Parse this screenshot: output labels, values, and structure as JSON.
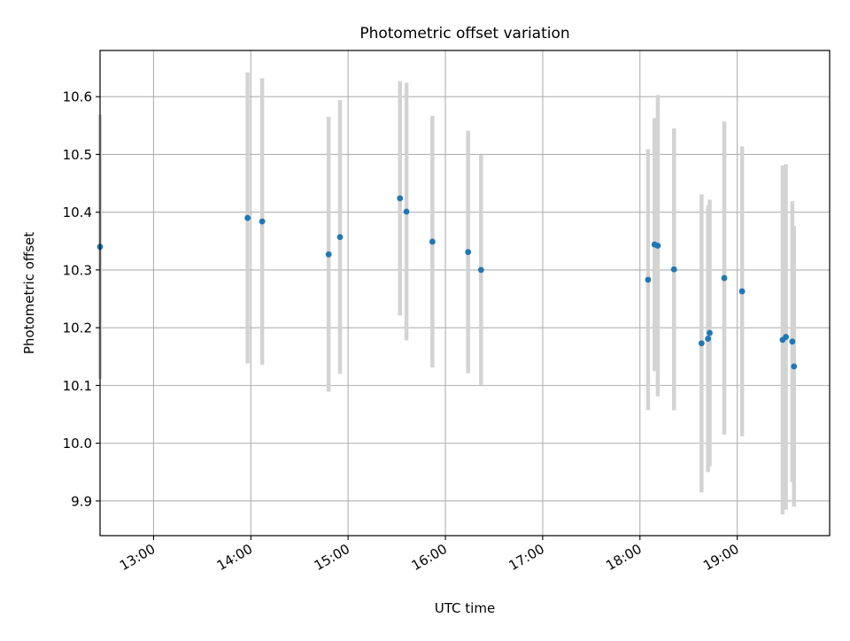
{
  "chart_data": {
    "type": "scatter",
    "title": "Photometric offset variation",
    "xlabel": "UTC time",
    "ylabel": "Photometric offset",
    "x_tick_labels": [
      "13:00",
      "14:00",
      "15:00",
      "16:00",
      "17:00",
      "18:00",
      "19:00"
    ],
    "x_ticks": [
      "13:00",
      "14:00",
      "15:00",
      "16:00",
      "17:00",
      "18:00",
      "19:00"
    ],
    "y_ticks": [
      9.9,
      10.0,
      10.1,
      10.2,
      10.3,
      10.4,
      10.5,
      10.6
    ],
    "y_tick_labels": [
      "9.9",
      "10.0",
      "10.1",
      "10.2",
      "10.3",
      "10.4",
      "10.5",
      "10.6"
    ],
    "xlim": [
      "12:27",
      "19:57"
    ],
    "ylim": [
      9.84,
      10.68
    ],
    "grid": true,
    "legend": "none",
    "colors": {
      "points": "#1f77b4",
      "errorbars": "#d3d3d3",
      "grid": "#b0b0b0"
    },
    "points": [
      {
        "time": "12:27",
        "y": 10.34,
        "err": 0.229
      },
      {
        "time": "13:58",
        "y": 10.39,
        "err": 0.252
      },
      {
        "time": "14:07",
        "y": 10.384,
        "err": 0.248
      },
      {
        "time": "14:48",
        "y": 10.327,
        "err": 0.238
      },
      {
        "time": "14:55",
        "y": 10.357,
        "err": 0.237
      },
      {
        "time": "15:32",
        "y": 10.424,
        "err": 0.203
      },
      {
        "time": "15:36",
        "y": 10.401,
        "err": 0.223
      },
      {
        "time": "15:52",
        "y": 10.349,
        "err": 0.218
      },
      {
        "time": "16:14",
        "y": 10.331,
        "err": 0.21
      },
      {
        "time": "16:22",
        "y": 10.3,
        "err": 0.199
      },
      {
        "time": "18:05",
        "y": 10.283,
        "err": 0.226
      },
      {
        "time": "18:09",
        "y": 10.344,
        "err": 0.219
      },
      {
        "time": "18:11",
        "y": 10.342,
        "err": 0.261
      },
      {
        "time": "18:21",
        "y": 10.301,
        "err": 0.244
      },
      {
        "time": "18:38",
        "y": 10.173,
        "err": 0.258
      },
      {
        "time": "18:42",
        "y": 10.181,
        "err": 0.231
      },
      {
        "time": "18:43",
        "y": 10.191,
        "err": 0.231
      },
      {
        "time": "18:52",
        "y": 10.286,
        "err": 0.271
      },
      {
        "time": "19:03",
        "y": 10.263,
        "err": 0.251
      },
      {
        "time": "19:28",
        "y": 10.179,
        "err": 0.302
      },
      {
        "time": "19:30",
        "y": 10.184,
        "err": 0.299
      },
      {
        "time": "19:34",
        "y": 10.176,
        "err": 0.243
      },
      {
        "time": "19:35",
        "y": 10.133,
        "err": 0.243
      }
    ]
  }
}
